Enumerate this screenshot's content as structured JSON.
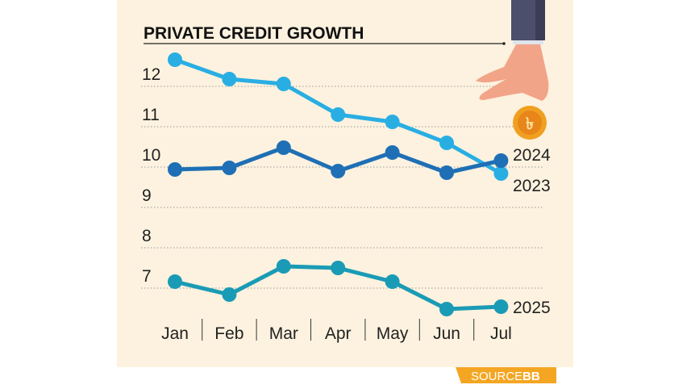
{
  "chart_data": {
    "type": "line",
    "title": "PRIVATE CREDIT GROWTH",
    "xlabel": "",
    "ylabel": "",
    "categories": [
      "Jan",
      "Feb",
      "Mar",
      "Apr",
      "May",
      "Jun",
      "Jul"
    ],
    "y_ticks": [
      "7",
      "8",
      "9",
      "10",
      "11",
      "12"
    ],
    "ylim": [
      6.2,
      12.8
    ],
    "grid": "horizontal dotted",
    "series": [
      {
        "name": "2023",
        "color": "#29aee3",
        "values": [
          12.66,
          12.18,
          12.06,
          11.3,
          11.12,
          10.6,
          9.84
        ]
      },
      {
        "name": "2024",
        "color": "#1e6fb5",
        "values": [
          9.94,
          9.98,
          10.48,
          9.9,
          10.36,
          9.86,
          10.16
        ]
      },
      {
        "name": "2025",
        "color": "#1a9bb5",
        "values": [
          7.16,
          6.84,
          7.54,
          7.5,
          7.16,
          6.48,
          6.54
        ]
      }
    ],
    "legend": "labels at line ends"
  },
  "source": {
    "label": "SOURCE:",
    "value": "BB"
  },
  "colors": {
    "background": "#fdf2df",
    "source_badge": "#f4a623"
  }
}
